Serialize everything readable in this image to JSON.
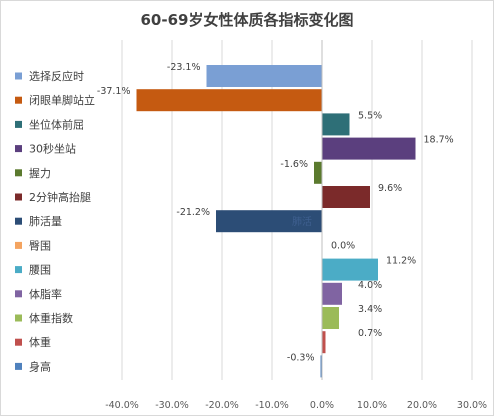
{
  "chart_data": {
    "type": "bar",
    "orientation": "horizontal",
    "title": "60-69岁女性体质各指标变化图",
    "categories": [
      "选择反应时",
      "闭眼单脚站立",
      "坐位体前屈",
      "30秒坐站",
      "握力",
      "2分钟高抬腿",
      "肺活量",
      "臀围",
      "腰围",
      "体脂率",
      "体重指数",
      "体重",
      "身高"
    ],
    "values": [
      -23.1,
      -37.1,
      5.5,
      18.7,
      -1.6,
      9.6,
      -21.2,
      0.0,
      11.2,
      4.0,
      3.4,
      0.7,
      -0.3
    ],
    "data_labels": [
      "-23.1%",
      "-37.1%",
      "5.5%",
      "18.7%",
      "-1.6%",
      "9.6%",
      "-21.2%",
      "0.0%",
      "11.2%",
      "4.0%",
      "3.4%",
      "0.7%",
      "-0.3%"
    ],
    "colors": [
      "#7a9fd4",
      "#c55a11",
      "#2e6f77",
      "#5b3f7e",
      "#5b7a2e",
      "#7b2a2a",
      "#2c4d76",
      "#f4a460",
      "#4bacc6",
      "#8064a2",
      "#9bbb59",
      "#c0504d",
      "#4f81bd"
    ],
    "xlim": [
      -40,
      30
    ],
    "x_ticks": [
      "-40.0%",
      "-30.0%",
      "-20.0%",
      "-10.0%",
      "0.0%",
      "10.0%",
      "20.0%",
      "30.0%"
    ],
    "x_tick_values": [
      -40,
      -30,
      -20,
      -10,
      0,
      10,
      20,
      30
    ],
    "legend_position": "left",
    "grid": "vertical",
    "inside_bar_text": "肺活",
    "inside_bar_index": 6
  }
}
